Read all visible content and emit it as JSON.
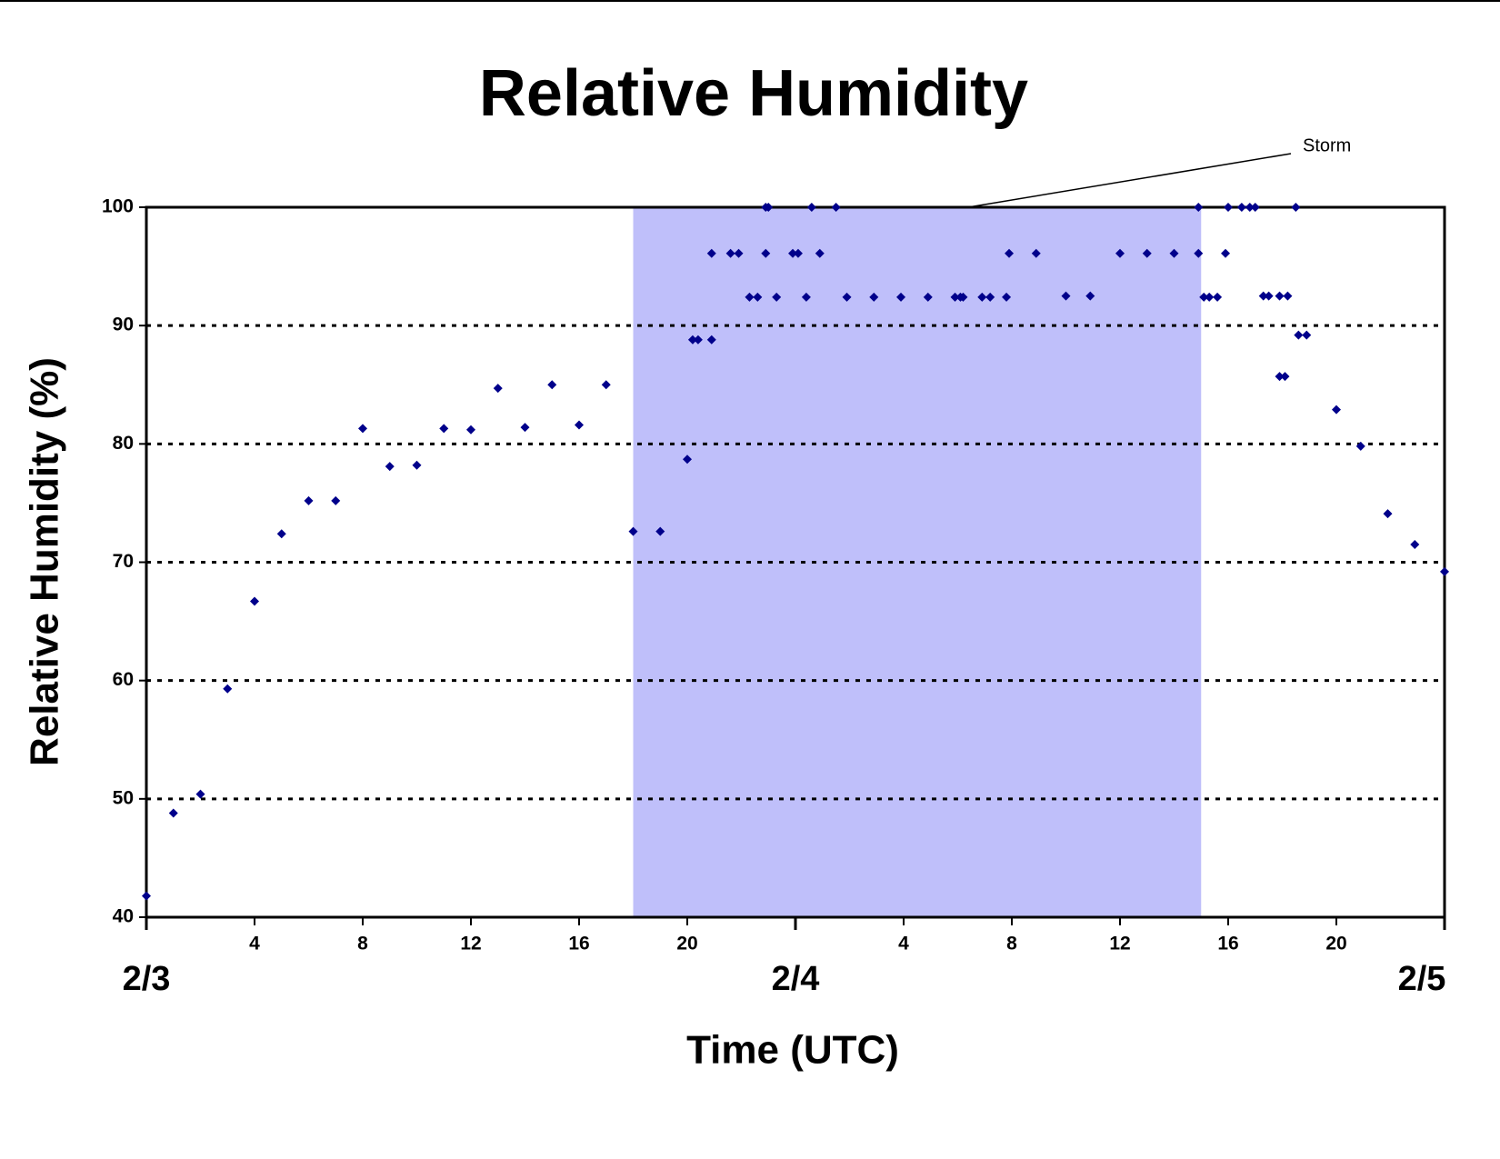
{
  "chart_data": {
    "type": "scatter",
    "title": "Relative Humidity",
    "x_label": "Time (UTC)",
    "y_label": "Relative Humidity (%)",
    "annotation": "Storm",
    "shade": [
      18,
      39
    ],
    "shade_color": "#bfbffa",
    "color": "#00008b",
    "grid": true,
    "xlim": [
      0,
      48
    ],
    "ylim": [
      40,
      100
    ],
    "yticks": [
      40,
      50,
      60,
      70,
      80,
      90,
      100
    ],
    "xticks": [
      4,
      8,
      12,
      16,
      20,
      {
        "value": 28,
        "label": "4"
      },
      {
        "value": 32,
        "label": "8"
      },
      {
        "value": 36,
        "label": "12"
      },
      {
        "value": 40,
        "label": "16"
      },
      {
        "value": 44,
        "label": "20"
      }
    ],
    "x_date_ticks": [
      {
        "value": 0,
        "label": "2/3"
      },
      {
        "value": 24,
        "label": "2/4"
      },
      {
        "value": 48,
        "label": "2/5"
      }
    ],
    "x": [
      0,
      1,
      2,
      3,
      4,
      5,
      6,
      7,
      8,
      9,
      10,
      11,
      12,
      13,
      14,
      15,
      16,
      17,
      18,
      19,
      20,
      20.2,
      20.4,
      20.9,
      20.9,
      21.6,
      21.9,
      22.3,
      22.6,
      22.9,
      23.0,
      22.9,
      23.3,
      23.9,
      24.1,
      24.4,
      24.6,
      24.9,
      25.5,
      25.9,
      26.9,
      27.9,
      28.9,
      29.9,
      30.1,
      30.2,
      30.9,
      31.2,
      31.8,
      31.9,
      32.9,
      34.0,
      34.9,
      36.0,
      37.0,
      38.0,
      38.9,
      38.9,
      39.1,
      39.3,
      39.6,
      39.9,
      40.0,
      40.5,
      40.8,
      41.0,
      41.3,
      41.5,
      41.9,
      42.1,
      41.9,
      42.2,
      42.5,
      42.6,
      42.9,
      44.0,
      44.9,
      45.9,
      46.9,
      48.0
    ],
    "values": [
      41.8,
      48.8,
      50.4,
      59.3,
      66.7,
      72.4,
      75.2,
      75.2,
      81.3,
      78.1,
      78.2,
      81.3,
      81.2,
      84.7,
      81.4,
      85.0,
      81.6,
      85.0,
      72.6,
      72.6,
      78.7,
      88.8,
      88.8,
      88.8,
      96.1,
      96.1,
      96.1,
      92.4,
      92.4,
      100,
      100,
      96.1,
      92.4,
      96.1,
      96.1,
      92.4,
      100,
      96.1,
      100,
      92.4,
      92.4,
      92.4,
      92.4,
      92.4,
      92.4,
      92.4,
      92.4,
      92.4,
      92.4,
      96.1,
      96.1,
      92.5,
      92.5,
      96.1,
      96.1,
      96.1,
      96.1,
      100,
      92.4,
      92.4,
      92.4,
      96.1,
      100,
      100,
      100,
      100,
      92.5,
      92.5,
      85.7,
      85.7,
      92.5,
      92.5,
      100,
      89.2,
      89.2,
      82.9,
      79.8,
      74.1,
      71.5,
      69.2
    ]
  }
}
